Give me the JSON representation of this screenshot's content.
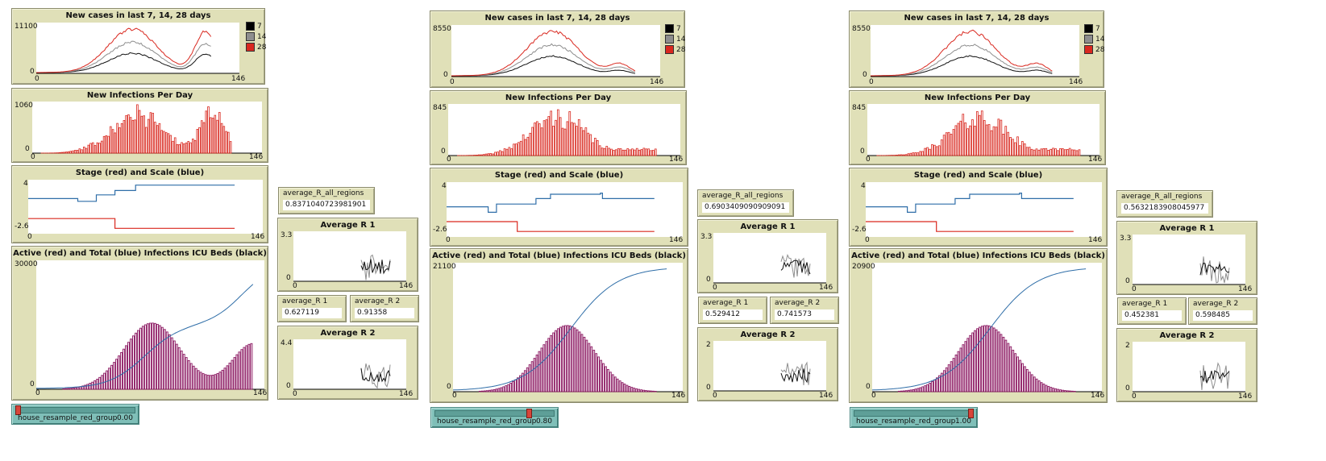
{
  "colors": {
    "red": "#d9281f",
    "blue": "#2f6ea8",
    "black": "#111111",
    "gray": "#8e8e8e",
    "icu": "#8a1660",
    "panel": "#e0e0b8"
  },
  "legend": [
    {
      "label": "7",
      "color": "#000000"
    },
    {
      "label": "14",
      "color": "#8e8e8e"
    },
    {
      "label": "28",
      "color": "#d9281f"
    }
  ],
  "titles": {
    "new_cases": "New cases in last 7, 14, 28 days",
    "new_infections": "New Infections Per Day",
    "stage": "Stage (red) and Scale (blue)",
    "active": "Active (red) and Total (blue) Infections ICU Beds (black)",
    "avg_r1": "Average R 1",
    "avg_r2": "Average R 2"
  },
  "labels": {
    "avg_all": "average_R_all_regions",
    "avg_r1": "average_R 1",
    "avg_r2": "average_R 2",
    "slider": "house_resample_red_group"
  },
  "views": [
    {
      "new_cases": {
        "ymax": "11100",
        "ymin": "0",
        "xmin": "0",
        "xmax": "146"
      },
      "new_infections": {
        "ymax": "1060",
        "ymin": "0",
        "xmin": "0",
        "xmax": "146"
      },
      "stage": {
        "ymax": "4",
        "ymin": "-2.6",
        "xmin": "0",
        "xmax": "146"
      },
      "active": {
        "ymax": "30000",
        "ymin": "0",
        "xmin": "0",
        "xmax": "146"
      },
      "avg_r1": {
        "ymax": "3.3",
        "ymin": "0",
        "xmin": "0",
        "xmax": "146"
      },
      "avg_r2": {
        "ymax": "4.4",
        "ymin": "0",
        "xmin": "0",
        "xmax": "146"
      },
      "average_R_all_regions": "0.8371040723981901",
      "average_R1": "0.627119",
      "average_R2": "0.91358",
      "slider_value": "0.00",
      "slider_fraction": 0.0
    },
    {
      "new_cases": {
        "ymax": "8550",
        "ymin": "0",
        "xmin": "0",
        "xmax": "146"
      },
      "new_infections": {
        "ymax": "845",
        "ymin": "0",
        "xmin": "0",
        "xmax": "146"
      },
      "stage": {
        "ymax": "4",
        "ymin": "-2.6",
        "xmin": "0",
        "xmax": "146"
      },
      "active": {
        "ymax": "21100",
        "ymin": "0",
        "xmin": "0",
        "xmax": "146"
      },
      "avg_r1": {
        "ymax": "3.3",
        "ymin": "0",
        "xmin": "0",
        "xmax": "146"
      },
      "avg_r2": {
        "ymax": "2",
        "ymin": "0",
        "xmin": "0",
        "xmax": "146"
      },
      "average_R_all_regions": "0.6903409090909091",
      "average_R1": "0.529412",
      "average_R2": "0.741573",
      "slider_value": "0.80",
      "slider_fraction": 0.8
    },
    {
      "new_cases": {
        "ymax": "8550",
        "ymin": "0",
        "xmin": "0",
        "xmax": "146"
      },
      "new_infections": {
        "ymax": "845",
        "ymin": "0",
        "xmin": "0",
        "xmax": "146"
      },
      "stage": {
        "ymax": "4",
        "ymin": "-2.6",
        "xmin": "0",
        "xmax": "146"
      },
      "active": {
        "ymax": "20900",
        "ymin": "0",
        "xmin": "0",
        "xmax": "146"
      },
      "avg_r1": {
        "ymax": "3.3",
        "ymin": "0",
        "xmin": "0",
        "xmax": "146"
      },
      "avg_r2": {
        "ymax": "2",
        "ymin": "0",
        "xmin": "0",
        "xmax": "146"
      },
      "average_R_all_regions": "0.5632183908045977",
      "average_R1": "0.452381",
      "average_R2": "0.598485",
      "slider_value": "1.00",
      "slider_fraction": 1.0
    }
  ]
}
